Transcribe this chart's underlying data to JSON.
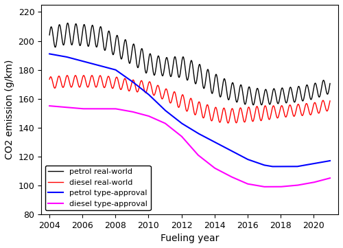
{
  "xlabel": "Fueling year",
  "ylabel": "CO2 emission (g/km)",
  "xlim": [
    2003.5,
    2021.5
  ],
  "ylim": [
    80,
    225
  ],
  "yticks": [
    80,
    100,
    120,
    140,
    160,
    180,
    200,
    220
  ],
  "xticks": [
    2004,
    2006,
    2008,
    2010,
    2012,
    2014,
    2016,
    2018,
    2020
  ],
  "legend_labels": [
    "petrol real-world",
    "diesel real-world",
    "petrol type-approval",
    "diesel type-approval"
  ],
  "petrol_rw_trend_x": [
    2004,
    2005,
    2006,
    2007,
    2008,
    2009,
    2009.5,
    2010,
    2011,
    2012,
    2013,
    2014,
    2015,
    2016,
    2017,
    2018,
    2019,
    2020,
    2021
  ],
  "petrol_rw_trend_y": [
    202,
    205,
    204,
    203,
    197,
    191,
    188,
    184,
    182,
    182,
    177,
    170,
    165,
    162,
    161,
    162,
    163,
    165,
    169
  ],
  "petrol_rw_amp": [
    7,
    7,
    7,
    7,
    7,
    7,
    7,
    7,
    6,
    7,
    7,
    7,
    6,
    6,
    5,
    5,
    5,
    5,
    5
  ],
  "diesel_rw_trend_x": [
    2004,
    2005,
    2006,
    2007,
    2008,
    2009,
    2010,
    2011,
    2012,
    2013,
    2014,
    2015,
    2016,
    2017,
    2018,
    2019,
    2020,
    2021
  ],
  "diesel_rw_trend_y": [
    171,
    172,
    172,
    172,
    171,
    169,
    168,
    163,
    158,
    153,
    149,
    148,
    149,
    150,
    151,
    152,
    153,
    156
  ],
  "diesel_rw_amp": [
    4,
    4,
    4,
    4,
    4,
    4,
    4,
    4,
    5,
    5,
    5,
    5,
    5,
    5,
    4,
    4,
    4,
    4
  ],
  "petrol_ta_x": [
    2004,
    2005,
    2006,
    2007,
    2008,
    2009,
    2010,
    2011,
    2012,
    2013,
    2014,
    2015,
    2016,
    2017,
    2017.5,
    2018,
    2019,
    2020,
    2021
  ],
  "petrol_ta_y": [
    191,
    189,
    186,
    183,
    180,
    172,
    163,
    152,
    143,
    136,
    130,
    124,
    118,
    114,
    113,
    113,
    113,
    115,
    117
  ],
  "diesel_ta_x": [
    2004,
    2005,
    2006,
    2007,
    2008,
    2009,
    2010,
    2011,
    2012,
    2013,
    2014,
    2015,
    2016,
    2017,
    2018,
    2019,
    2020,
    2021
  ],
  "diesel_ta_y": [
    155,
    154,
    153,
    153,
    153,
    151,
    148,
    143,
    134,
    121,
    112,
    106,
    101,
    99,
    99,
    100,
    102,
    105
  ],
  "background_color": "#ffffff"
}
